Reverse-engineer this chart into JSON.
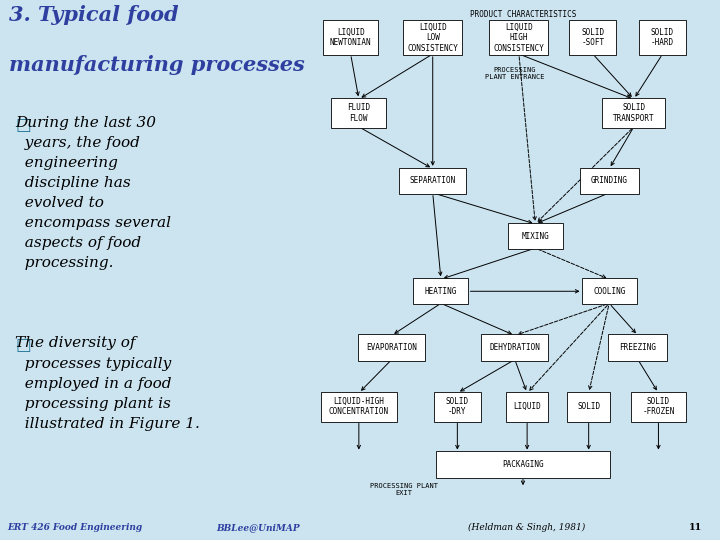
{
  "title_line1": "3. Typical food",
  "title_line2": "manufacturing processes",
  "title_color": "#2E3FA0",
  "bg_color": "#b8d8e8",
  "bg_color_light": "#cce4f0",
  "bullet1_sq": "□",
  "bullet1_text": "During the last 30\n  years, the food\n  engineering\n  discipline has\n  evolved to\n  encompass several\n  aspects of food\n  processing.",
  "bullet2_sq": "□",
  "bullet2_text": "The diversity of\n  processes typically\n  employed in a food\n  processing plant is\n  illustrated in Figure 1.",
  "footer_left": "ERT 426 Food Engineering",
  "footer_center": "BBLee@UniMAP",
  "footer_right": "(Heldman & Singh, 1981)",
  "page_num": "11",
  "diagram_title": "PRODUCT CHARACTERISTICS",
  "proc_plant_entrance": "PROCESSING\nPLANT ENTRANCE",
  "proc_plant_exit": "PROCESSING PLANT\nEXIT"
}
